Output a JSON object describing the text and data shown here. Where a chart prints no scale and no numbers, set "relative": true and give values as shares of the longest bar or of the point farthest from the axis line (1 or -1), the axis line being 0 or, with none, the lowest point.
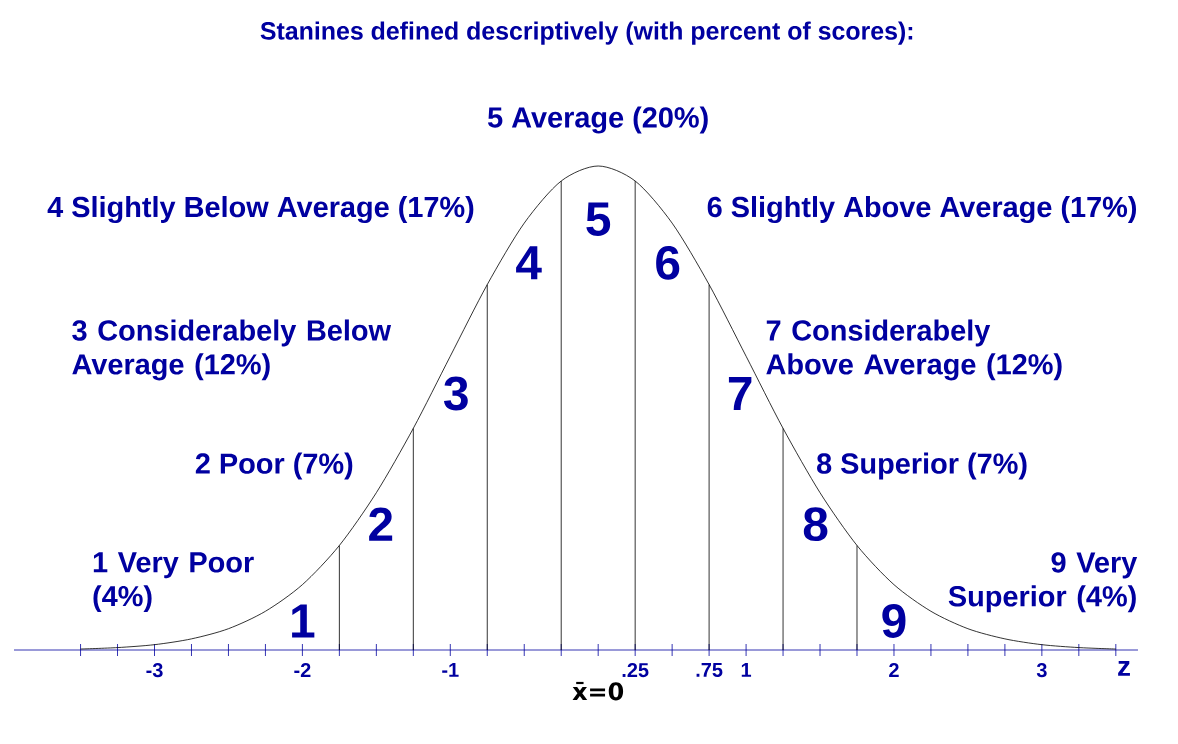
{
  "chart_data": {
    "type": "line",
    "relative": true,
    "title": "Stanines defined descriptively (with percent of scores):",
    "xlabel": "z",
    "x": [
      -3.5,
      -3.25,
      -3,
      -2.75,
      -2.5,
      -2.25,
      -2,
      -1.75,
      -1.5,
      -1.25,
      -1,
      -0.75,
      -0.5,
      -0.25,
      0,
      0.25,
      0.5,
      0.75,
      1,
      1.25,
      1.5,
      1.75,
      2,
      2.25,
      2.5,
      2.75,
      3,
      3.25,
      3.5
    ],
    "series": [
      {
        "color": "#000000",
        "values": [
          0.002,
          0.005,
          0.011,
          0.023,
          0.044,
          0.08,
          0.135,
          0.216,
          0.325,
          0.458,
          0.607,
          0.755,
          0.882,
          0.969,
          1,
          0.969,
          0.882,
          0.755,
          0.607,
          0.458,
          0.325,
          0.216,
          0.135,
          0.08,
          0.044,
          0.023,
          0.011,
          0.005,
          0.002
        ]
      }
    ],
    "xlim": [
      -3.95,
      3.65
    ],
    "xticks": [
      {
        "value": -3.5,
        "label": null
      },
      {
        "value": -3.25,
        "label": null
      },
      -3,
      {
        "value": -2.75,
        "label": null
      },
      {
        "value": -2.5,
        "label": null
      },
      {
        "value": -2.25,
        "label": null
      },
      -2,
      {
        "value": -1.75,
        "label": null
      },
      {
        "value": -1.5,
        "label": null
      },
      {
        "value": -1.25,
        "label": null
      },
      -1,
      {
        "value": -0.75,
        "label": null
      },
      {
        "value": -0.5,
        "label": null
      },
      {
        "value": -0.25,
        "label": null
      },
      {
        "value": 0,
        "label": null
      },
      {
        "value": 0.25,
        "label": ".25"
      },
      {
        "value": 0.5,
        "label": null
      },
      {
        "value": 0.75,
        "label": ".75"
      },
      1,
      {
        "value": 1.25,
        "label": null
      },
      {
        "value": 1.5,
        "label": null
      },
      {
        "value": 1.75,
        "label": null
      },
      2,
      {
        "value": 2.25,
        "label": null
      },
      {
        "value": 2.5,
        "label": null
      },
      {
        "value": 2.75,
        "label": null
      },
      3,
      {
        "value": 3.25,
        "label": null
      },
      {
        "value": 3.5,
        "label": null
      }
    ],
    "ref_lines": [
      {
        "axis": "x",
        "value": -1.75,
        "color": "#000000"
      },
      {
        "axis": "x",
        "value": -1.25,
        "color": "#000000"
      },
      {
        "axis": "x",
        "value": -0.75,
        "color": "#000000"
      },
      {
        "axis": "x",
        "value": -0.25,
        "color": "#000000"
      },
      {
        "axis": "x",
        "value": 0.25,
        "color": "#000000"
      },
      {
        "axis": "x",
        "value": 0.75,
        "color": "#000000"
      },
      {
        "axis": "x",
        "value": 1.25,
        "color": "#000000"
      },
      {
        "axis": "x",
        "value": 1.75,
        "color": "#000000"
      }
    ],
    "annotations": [
      "1 Very Poor (4%)",
      "2 Poor (7%)",
      "3 Considerabely Below Average (12%)",
      "4 Slightly Below Average (17%)",
      "5 Average (20%)",
      "6 Slightly Above Average (17%)",
      "7 Considerabely Above Average (12%)",
      "8 Superior (7%)",
      "9 Very Superior (4%)",
      "1",
      "2",
      "3",
      "4",
      "5",
      "6",
      "7",
      "8",
      "9",
      "x̄=0"
    ]
  }
}
